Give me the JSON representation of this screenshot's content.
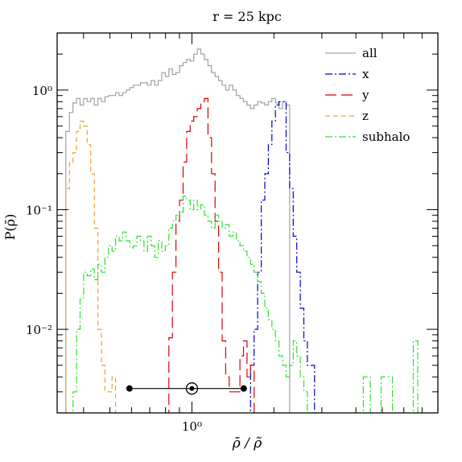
{
  "chart_data": {
    "type": "line",
    "subtype": "step-histogram",
    "title": "r = 25 kpc",
    "xlabel": "ρ̄ / ρ̃",
    "ylabel": "P(ρ̄)",
    "xscale": "log",
    "yscale": "log",
    "xlim": [
      0.32,
      8.0
    ],
    "ylim": [
      0.002,
      3.0
    ],
    "x_tick_labels": [
      {
        "value": 1.0,
        "label": "10⁰"
      }
    ],
    "y_tick_labels": [
      {
        "value": 1.0,
        "label": "10⁰"
      },
      {
        "value": 0.1,
        "label": "10⁻¹"
      },
      {
        "value": 0.01,
        "label": "10⁻²"
      }
    ],
    "legend_position": "top-right",
    "series": [
      {
        "name": "all",
        "color": "#a0a0a0",
        "dash": "solid",
        "edges": [
          0.3445,
          0.355,
          0.3658,
          0.377,
          0.3885,
          0.4003,
          0.4125,
          0.4251,
          0.4381,
          0.4514,
          0.4652,
          0.4794,
          0.494,
          0.509,
          0.5245,
          0.5405,
          0.557,
          0.574,
          0.5915,
          0.6095,
          0.6281,
          0.6473,
          0.667,
          0.6873,
          0.7083,
          0.7299,
          0.7521,
          0.7751,
          0.7987,
          0.823,
          0.8481,
          0.874,
          0.9006,
          0.9281,
          0.9564,
          0.9855,
          1.0156,
          1.0465,
          1.0784,
          1.1113,
          1.1452,
          1.1801,
          1.2161,
          1.2532,
          1.2914,
          1.3308,
          1.3713,
          1.4131,
          1.4562,
          1.5006,
          1.5464,
          1.5935,
          1.6421,
          1.6922,
          1.7438,
          1.797,
          1.8518,
          1.9083,
          1.9665,
          2.0264,
          2.0882,
          2.1519,
          2.2175,
          2.2851
        ],
        "values": [
          0.45,
          0.65,
          0.78,
          0.85,
          0.75,
          0.85,
          0.8,
          0.85,
          0.75,
          0.85,
          0.8,
          0.88,
          0.9,
          0.9,
          0.95,
          0.9,
          0.95,
          1.0,
          1.05,
          1.1,
          1.1,
          1.15,
          1.15,
          1.1,
          1.2,
          1.1,
          1.2,
          1.4,
          1.3,
          1.5,
          1.35,
          1.4,
          1.6,
          1.7,
          1.8,
          1.75,
          2.0,
          2.2,
          2.0,
          1.8,
          1.6,
          1.4,
          1.3,
          1.2,
          1.1,
          1.0,
          1.1,
          1.0,
          0.9,
          0.85,
          0.8,
          0.75,
          0.7,
          0.75,
          0.8,
          0.78,
          0.75,
          0.8,
          0.85,
          0.78,
          0.7,
          0.8,
          0.75
        ]
      },
      {
        "name": "x",
        "color": "#0000cc",
        "dash": "dash-dot",
        "edges": [
          1.6421,
          1.6922,
          1.7438,
          1.797,
          1.8518,
          1.9083,
          1.9665,
          2.0264,
          2.0882,
          2.1519,
          2.2175,
          2.2851,
          2.3548,
          2.4266,
          2.5006,
          2.5768,
          2.6553,
          2.7363,
          2.8197,
          2.9056
        ],
        "values": [
          0.005,
          0.01,
          0.03,
          0.12,
          0.2,
          0.35,
          0.55,
          0.75,
          0.8,
          0.8,
          0.3,
          0.15,
          0.06,
          0.03,
          0.015,
          0.008,
          0.005,
          0.005,
          0.002
        ]
      },
      {
        "name": "y",
        "color": "#dd0000",
        "dash": "long-dash",
        "edges": [
          0.823,
          0.8481,
          0.874,
          0.9006,
          0.9281,
          0.9564,
          0.9855,
          1.0156,
          1.0465,
          1.0784,
          1.1113,
          1.1452,
          1.1801,
          1.2161,
          1.2532,
          1.2914,
          1.3308,
          1.3713,
          1.4131,
          1.4562,
          1.5006,
          1.5464,
          1.5935,
          1.6421,
          1.6922
        ],
        "values": [
          0.0085,
          0.03,
          0.08,
          0.12,
          0.25,
          0.45,
          0.55,
          0.6,
          0.7,
          0.8,
          0.85,
          0.4,
          0.2,
          0.08,
          0.03,
          0.008,
          0.004,
          0.003,
          0.003,
          0.003,
          0.006,
          0.008,
          0.004,
          0.005
        ]
      },
      {
        "name": "z",
        "color": "#f0a030",
        "dash": "short-dash",
        "edges": [
          0.3445,
          0.355,
          0.3658,
          0.377,
          0.3885,
          0.4003,
          0.4125,
          0.4251,
          0.4381,
          0.4514,
          0.4652,
          0.4794,
          0.494,
          0.509,
          0.5245
        ],
        "values": [
          0.15,
          0.25,
          0.3,
          0.45,
          0.55,
          0.5,
          0.35,
          0.2,
          0.07,
          0.01,
          0.005,
          0.003,
          0.003,
          0.004
        ]
      },
      {
        "name": "subhalo",
        "color": "#30e030",
        "dash": "dash-dot",
        "edges": [
          0.3658,
          0.377,
          0.3885,
          0.4003,
          0.4125,
          0.4251,
          0.4381,
          0.4514,
          0.4652,
          0.4794,
          0.494,
          0.509,
          0.5245,
          0.5405,
          0.557,
          0.574,
          0.5915,
          0.6095,
          0.6281,
          0.6473,
          0.667,
          0.6873,
          0.7083,
          0.7299,
          0.7521,
          0.7751,
          0.7987,
          0.823,
          0.8481,
          0.874,
          0.9006,
          0.9281,
          0.9564,
          0.9855,
          1.0156,
          1.0465,
          1.0784,
          1.1113,
          1.1452,
          1.1801,
          1.2161,
          1.2532,
          1.2914,
          1.3308,
          1.3713,
          1.4131,
          1.4562,
          1.5006,
          1.5464,
          1.5935,
          1.6421,
          1.6922,
          1.7438,
          1.797,
          1.8518,
          1.9083,
          1.9665,
          2.0264,
          2.0882,
          2.1519,
          2.2175,
          2.2851,
          2.3548,
          2.4266,
          2.5006,
          2.5768,
          2.6553,
          2.7363,
          2.8197,
          2.9056
        ],
        "values": [
          0.003,
          0.01,
          0.018,
          0.03,
          0.028,
          0.032,
          0.026,
          0.035,
          0.03,
          0.04,
          0.05,
          0.045,
          0.06,
          0.055,
          0.065,
          0.055,
          0.048,
          0.05,
          0.06,
          0.055,
          0.045,
          0.06,
          0.05,
          0.04,
          0.055,
          0.045,
          0.05,
          0.07,
          0.08,
          0.09,
          0.095,
          0.13,
          0.12,
          0.1,
          0.12,
          0.1,
          0.11,
          0.09,
          0.08,
          0.07,
          0.09,
          0.08,
          0.07,
          0.075,
          0.06,
          0.065,
          0.055,
          0.05,
          0.045,
          0.04,
          0.035,
          0.03,
          0.025,
          0.02,
          0.015,
          0.012,
          0.01,
          0.008,
          0.006,
          0.005,
          0.004,
          0.005,
          0.008,
          0.006,
          0.004,
          0.003,
          0.002,
          0.002,
          0.002
        ]
      }
    ],
    "tail_bins": [
      {
        "series": "subhalo",
        "from": 4.26,
        "to": 4.52,
        "value": 0.004
      },
      {
        "series": "subhalo",
        "from": 4.95,
        "to": 5.45,
        "value": 0.004
      },
      {
        "series": "subhalo",
        "from": 6.5,
        "to": 6.75,
        "value": 0.008
      }
    ],
    "error_bar": {
      "y": 0.0032,
      "center": 1.0,
      "low": 0.59,
      "high": 1.55
    }
  }
}
